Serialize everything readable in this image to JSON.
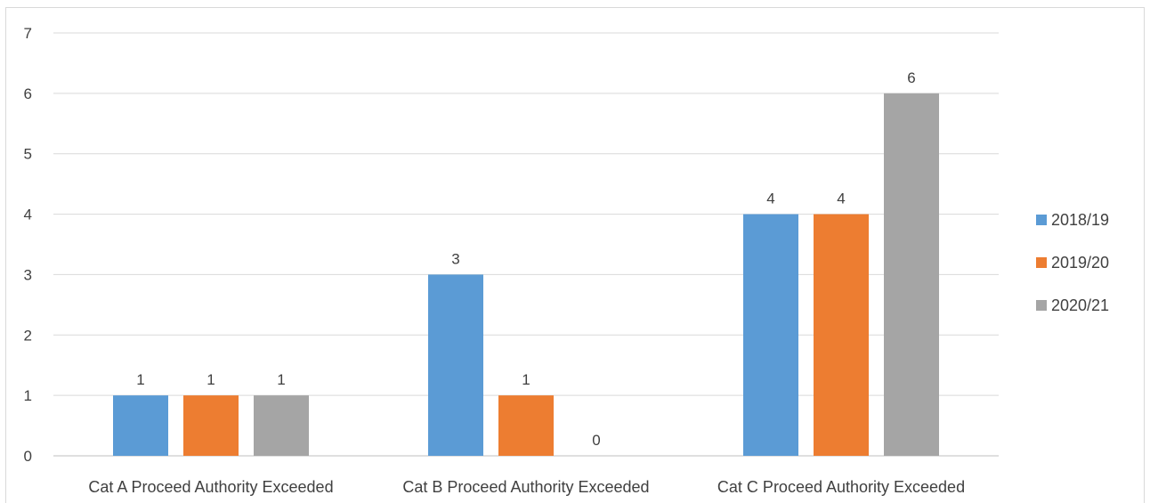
{
  "chart_data": {
    "type": "bar",
    "categories": [
      "Cat A Proceed Authority Exceeded",
      "Cat B Proceed Authority Exceeded",
      "Cat C Proceed Authority Exceeded"
    ],
    "series": [
      {
        "name": "2018/19",
        "values": [
          1,
          3,
          4
        ],
        "color": "#5b9bd5"
      },
      {
        "name": "2019/20",
        "values": [
          1,
          1,
          4
        ],
        "color": "#ed7d31"
      },
      {
        "name": "2020/21",
        "values": [
          1,
          0,
          6
        ],
        "color": "#a5a5a5"
      }
    ],
    "ylim": [
      0,
      7
    ],
    "yticks": [
      0,
      1,
      2,
      3,
      4,
      5,
      6,
      7
    ],
    "grid": true,
    "legend_position": "right",
    "data_labels": true,
    "title": "",
    "xlabel": "",
    "ylabel": ""
  }
}
